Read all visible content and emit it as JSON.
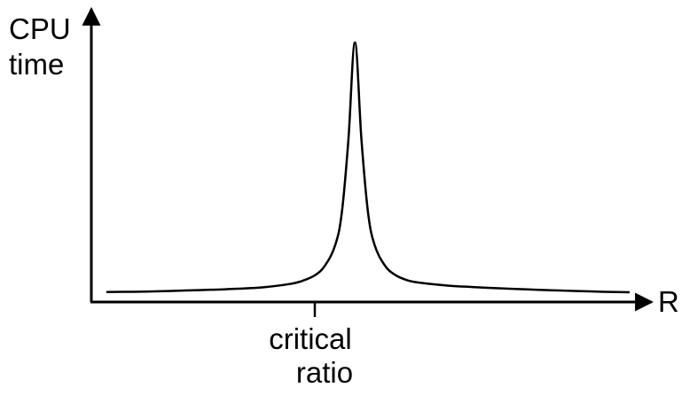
{
  "chart_data": {
    "type": "line",
    "title": "",
    "ylabel_lines": [
      "CPU",
      "time"
    ],
    "xlabel": "R",
    "annotation_lines": [
      "critical",
      "ratio"
    ],
    "axis_ticks": {
      "y": false,
      "x_numeric": false,
      "critical_marker": true
    },
    "grid": false,
    "legend": "none",
    "series": [
      {
        "color": "#000000",
        "x": [
          0.2,
          0.6,
          1.0,
          1.4,
          1.8,
          2.2,
          2.6,
          3.0,
          3.2,
          3.4,
          3.55,
          3.7,
          3.8,
          3.9,
          4.0,
          4.1,
          4.2,
          4.3,
          4.45,
          4.6,
          4.8,
          5.0,
          5.4,
          5.8,
          6.2,
          6.6,
          7.0,
          7.4,
          7.8,
          8.2
        ],
        "y": [
          0.01,
          0.02,
          0.04,
          0.07,
          0.1,
          0.14,
          0.2,
          0.33,
          0.46,
          0.7,
          1.1,
          1.9,
          3.2,
          6.1,
          10.0,
          6.1,
          3.2,
          1.9,
          1.1,
          0.72,
          0.48,
          0.38,
          0.27,
          0.21,
          0.16,
          0.12,
          0.08,
          0.05,
          0.02,
          0.0
        ]
      }
    ]
  },
  "colors": {
    "line": "#000000",
    "axis": "#000000",
    "background": "#ffffff"
  }
}
